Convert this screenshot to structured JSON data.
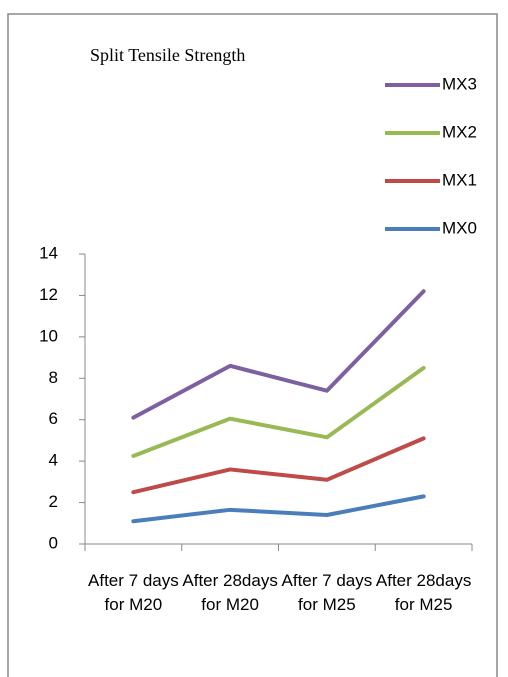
{
  "chart_data": {
    "type": "line",
    "title": "Split Tensile Strength",
    "categories": [
      "After 7 days for M20",
      "After 28days for M20",
      "After 7 days for M25",
      "After 28days for M25"
    ],
    "series": [
      {
        "name": "MX0",
        "color": "#4a7ebb",
        "values": [
          1.1,
          1.65,
          1.4,
          2.3
        ]
      },
      {
        "name": "MX1",
        "color": "#be4b48",
        "values": [
          2.5,
          3.6,
          3.1,
          5.1
        ]
      },
      {
        "name": "MX2",
        "color": "#98b954",
        "values": [
          4.25,
          6.05,
          5.15,
          8.5
        ]
      },
      {
        "name": "MX3",
        "color": "#7d60a0",
        "values": [
          6.1,
          8.6,
          7.4,
          12.2
        ]
      }
    ],
    "ylim": [
      0,
      14
    ],
    "yticks": [
      0,
      2,
      4,
      6,
      8,
      10,
      12,
      14
    ],
    "grid": false,
    "legend": "right"
  }
}
